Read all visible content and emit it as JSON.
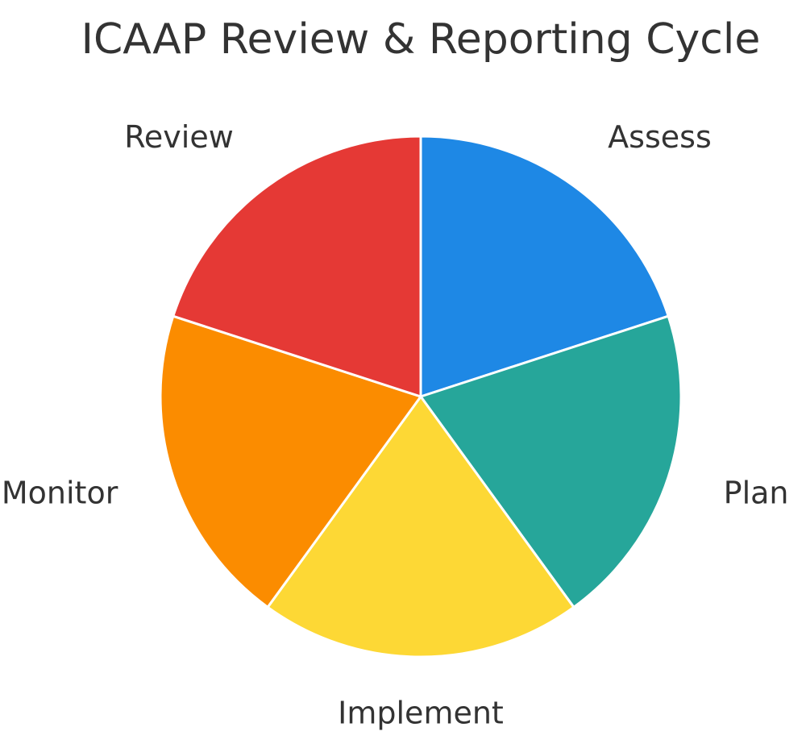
{
  "chart_data": {
    "type": "pie",
    "title": "ICAAP Review & Reporting Cycle",
    "categories": [
      "Assess",
      "Plan",
      "Implement",
      "Monitor",
      "Review"
    ],
    "values": [
      20,
      20,
      20,
      20,
      20
    ],
    "colors": [
      "#1E88E5",
      "#26A69A",
      "#FDD835",
      "#FB8C00",
      "#E53935"
    ],
    "start_angle": "top",
    "direction": "clockwise",
    "legend": "none"
  }
}
